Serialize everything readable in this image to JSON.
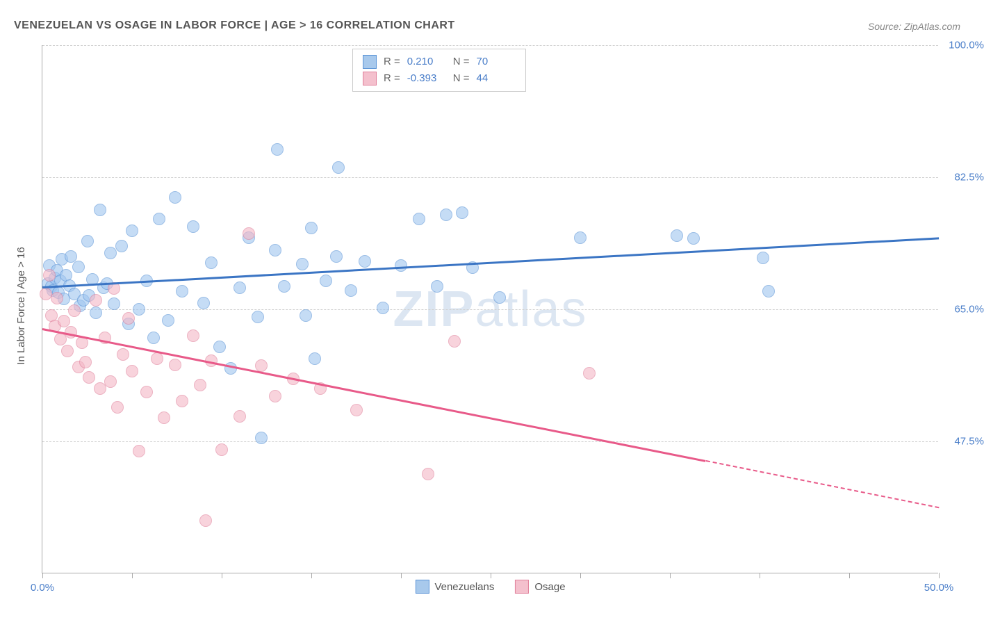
{
  "title": "VENEZUELAN VS OSAGE IN LABOR FORCE | AGE > 16 CORRELATION CHART",
  "source": "Source: ZipAtlas.com",
  "y_axis_label": "In Labor Force | Age > 16",
  "watermark_a": "ZIP",
  "watermark_b": "atlas",
  "chart": {
    "type": "scatter",
    "background_color": "#ffffff",
    "grid_color": "#d0d0d0",
    "axis_color": "#aaaaaa",
    "xlim": [
      0,
      50
    ],
    "ylim": [
      30,
      100
    ],
    "x_ticks": [
      0,
      5,
      10,
      15,
      20,
      25,
      30,
      35,
      40,
      45,
      50
    ],
    "x_tick_labels": {
      "0": "0.0%",
      "50": "50.0%"
    },
    "y_ticks": [
      47.5,
      65.0,
      82.5,
      100.0
    ],
    "y_tick_labels": [
      "47.5%",
      "65.0%",
      "82.5%",
      "100.0%"
    ],
    "marker_size": 18,
    "marker_opacity": 0.6,
    "title_fontsize": 16,
    "label_fontsize": 15,
    "line_width": 3
  },
  "series": [
    {
      "name": "Venezuelans",
      "color_fill": "#9fc5f0",
      "color_stroke": "#5a93d6",
      "line_color": "#3b75c4",
      "R": "0.210",
      "N": "70",
      "trend": {
        "x1": 0,
        "y1": 68.0,
        "x2": 50,
        "y2": 74.5
      },
      "points": [
        [
          0.3,
          68.4
        ],
        [
          0.4,
          70.8
        ],
        [
          0.5,
          68.0
        ],
        [
          0.6,
          67.5
        ],
        [
          0.7,
          69.1
        ],
        [
          0.8,
          70.2
        ],
        [
          0.9,
          67.2
        ],
        [
          1.0,
          68.8
        ],
        [
          1.1,
          71.6
        ],
        [
          1.2,
          66.4
        ],
        [
          1.3,
          69.5
        ],
        [
          1.5,
          68.1
        ],
        [
          1.6,
          72.0
        ],
        [
          1.8,
          67.0
        ],
        [
          2.0,
          70.6
        ],
        [
          2.1,
          65.5
        ],
        [
          2.3,
          66.2
        ],
        [
          2.5,
          74.0
        ],
        [
          2.6,
          66.8
        ],
        [
          2.8,
          69.0
        ],
        [
          3.0,
          64.5
        ],
        [
          3.2,
          78.2
        ],
        [
          3.4,
          67.9
        ],
        [
          3.6,
          68.4
        ],
        [
          3.8,
          72.5
        ],
        [
          4.0,
          65.7
        ],
        [
          4.4,
          73.4
        ],
        [
          4.8,
          63.1
        ],
        [
          5.0,
          75.4
        ],
        [
          5.4,
          65.0
        ],
        [
          5.8,
          68.8
        ],
        [
          6.2,
          61.2
        ],
        [
          6.5,
          77.0
        ],
        [
          7.0,
          63.5
        ],
        [
          7.4,
          79.8
        ],
        [
          7.8,
          67.4
        ],
        [
          8.4,
          76.0
        ],
        [
          9.0,
          65.8
        ],
        [
          9.4,
          71.2
        ],
        [
          9.9,
          60.0
        ],
        [
          10.5,
          57.2
        ],
        [
          11.0,
          67.9
        ],
        [
          11.5,
          74.5
        ],
        [
          12.0,
          64.0
        ],
        [
          12.2,
          48.0
        ],
        [
          13.0,
          72.8
        ],
        [
          13.1,
          86.2
        ],
        [
          13.5,
          68.0
        ],
        [
          14.5,
          71.0
        ],
        [
          14.7,
          64.2
        ],
        [
          15.0,
          75.8
        ],
        [
          15.2,
          58.5
        ],
        [
          15.8,
          68.8
        ],
        [
          16.4,
          72.0
        ],
        [
          16.5,
          83.8
        ],
        [
          17.2,
          67.5
        ],
        [
          18.0,
          71.4
        ],
        [
          19.0,
          65.2
        ],
        [
          20.0,
          70.8
        ],
        [
          21.0,
          77.0
        ],
        [
          22.0,
          68.0
        ],
        [
          22.5,
          77.5
        ],
        [
          23.4,
          77.8
        ],
        [
          24.0,
          70.5
        ],
        [
          25.5,
          66.6
        ],
        [
          30.0,
          74.5
        ],
        [
          35.4,
          74.8
        ],
        [
          36.3,
          74.4
        ],
        [
          40.2,
          71.8
        ],
        [
          40.5,
          67.4
        ]
      ]
    },
    {
      "name": "Osage",
      "color_fill": "#f4b6c5",
      "color_stroke": "#e07f9a",
      "line_color": "#e85a89",
      "R": "-0.393",
      "N": "44",
      "trend": {
        "x1": 0,
        "y1": 62.5,
        "x2": 37,
        "y2": 45.0
      },
      "trend_dashed": {
        "x1": 37,
        "y1": 45.0,
        "x2": 50,
        "y2": 38.8
      },
      "points": [
        [
          0.2,
          67.0
        ],
        [
          0.4,
          69.5
        ],
        [
          0.5,
          64.2
        ],
        [
          0.7,
          62.8
        ],
        [
          0.8,
          66.5
        ],
        [
          1.0,
          61.0
        ],
        [
          1.2,
          63.4
        ],
        [
          1.4,
          59.5
        ],
        [
          1.6,
          62.0
        ],
        [
          1.8,
          64.8
        ],
        [
          2.0,
          57.4
        ],
        [
          2.2,
          60.6
        ],
        [
          2.4,
          58.0
        ],
        [
          2.6,
          56.0
        ],
        [
          3.0,
          66.2
        ],
        [
          3.2,
          54.5
        ],
        [
          3.5,
          61.2
        ],
        [
          3.8,
          55.4
        ],
        [
          4.0,
          67.8
        ],
        [
          4.2,
          52.0
        ],
        [
          4.5,
          59.0
        ],
        [
          4.8,
          63.8
        ],
        [
          5.0,
          56.8
        ],
        [
          5.4,
          46.2
        ],
        [
          5.8,
          54.0
        ],
        [
          6.4,
          58.5
        ],
        [
          6.8,
          50.6
        ],
        [
          7.4,
          57.6
        ],
        [
          7.8,
          52.8
        ],
        [
          8.4,
          61.5
        ],
        [
          8.8,
          55.0
        ],
        [
          9.1,
          37.0
        ],
        [
          9.4,
          58.2
        ],
        [
          10.0,
          46.4
        ],
        [
          11.0,
          50.8
        ],
        [
          11.5,
          75.0
        ],
        [
          12.2,
          57.5
        ],
        [
          13.0,
          53.5
        ],
        [
          14.0,
          55.8
        ],
        [
          15.5,
          54.5
        ],
        [
          17.5,
          51.6
        ],
        [
          21.5,
          43.2
        ],
        [
          23.0,
          60.8
        ],
        [
          30.5,
          56.5
        ]
      ]
    }
  ],
  "stats_labels": {
    "R": "R =",
    "N": "N ="
  },
  "legend_labels": [
    "Venezuelans",
    "Osage"
  ]
}
